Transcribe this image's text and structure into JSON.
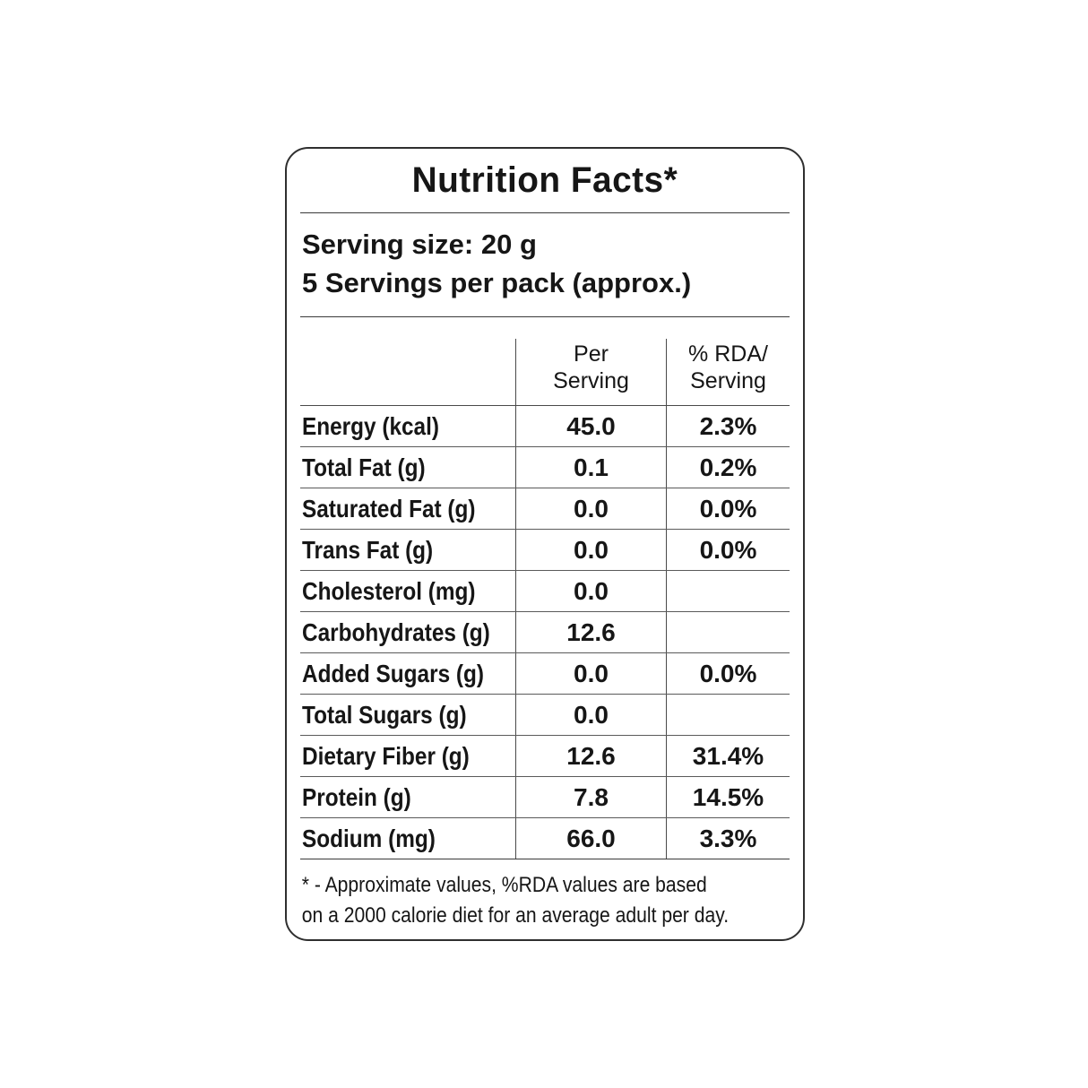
{
  "label": {
    "title": "Nutrition Facts*",
    "serving": {
      "size_line": "Serving size: 20 g",
      "pack_line": "5 Servings per pack (approx.)"
    },
    "table": {
      "headers": {
        "per_serving": "Per\nServing",
        "rda": "% RDA/\nServing"
      },
      "rows": [
        {
          "label": "Energy (kcal)",
          "per_serving": "45.0",
          "rda": "2.3%"
        },
        {
          "label": "Total Fat (g)",
          "per_serving": "0.1",
          "rda": "0.2%"
        },
        {
          "label": "Saturated Fat (g)",
          "per_serving": "0.0",
          "rda": "0.0%"
        },
        {
          "label": "Trans Fat (g)",
          "per_serving": "0.0",
          "rda": "0.0%"
        },
        {
          "label": "Cholesterol (mg)",
          "per_serving": "0.0",
          "rda": ""
        },
        {
          "label": "Carbohydrates (g)",
          "per_serving": "12.6",
          "rda": ""
        },
        {
          "label": "Added Sugars (g)",
          "per_serving": "0.0",
          "rda": "0.0%"
        },
        {
          "label": "Total Sugars (g)",
          "per_serving": "0.0",
          "rda": ""
        },
        {
          "label": "Dietary Fiber (g)",
          "per_serving": "12.6",
          "rda": "31.4%"
        },
        {
          "label": "Protein (g)",
          "per_serving": "7.8",
          "rda": "14.5%"
        },
        {
          "label": "Sodium (mg)",
          "per_serving": "66.0",
          "rda": "3.3%"
        }
      ]
    },
    "footnote": "* - Approximate values, %RDA values are based\non a 2000 calorie diet for an average adult per day.",
    "colors": {
      "text": "#161616",
      "border": "#2f2f2f",
      "grid_line": "#4a4a4a",
      "background": "#ffffff"
    }
  }
}
